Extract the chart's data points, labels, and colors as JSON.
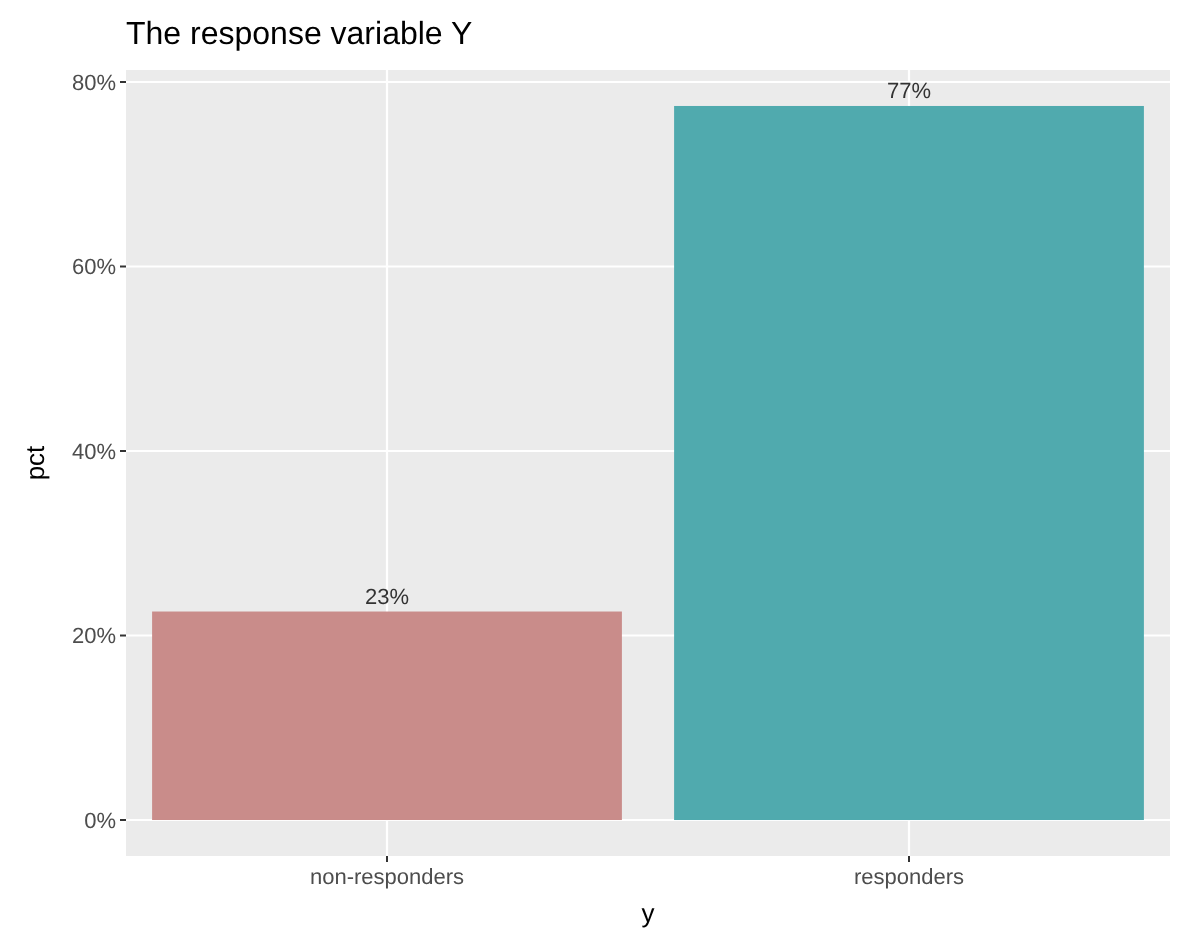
{
  "chart_data": {
    "type": "bar",
    "title": "The response variable Y",
    "xlabel": "y",
    "ylabel": "pct",
    "categories": [
      "non-responders",
      "responders"
    ],
    "values": [
      22.6,
      77.4
    ],
    "colors": [
      "#c98c8a",
      "#50aaae"
    ],
    "value_labels": [
      "23%",
      "77%"
    ],
    "ylim": [
      -3.9,
      81.3
    ],
    "yticks": [
      {
        "value": 0,
        "label": "0%"
      },
      {
        "value": 20,
        "label": "20%"
      },
      {
        "value": 40,
        "label": "40%"
      },
      {
        "value": 60,
        "label": "60%"
      },
      {
        "value": 80,
        "label": "80%"
      }
    ],
    "grid": true
  }
}
